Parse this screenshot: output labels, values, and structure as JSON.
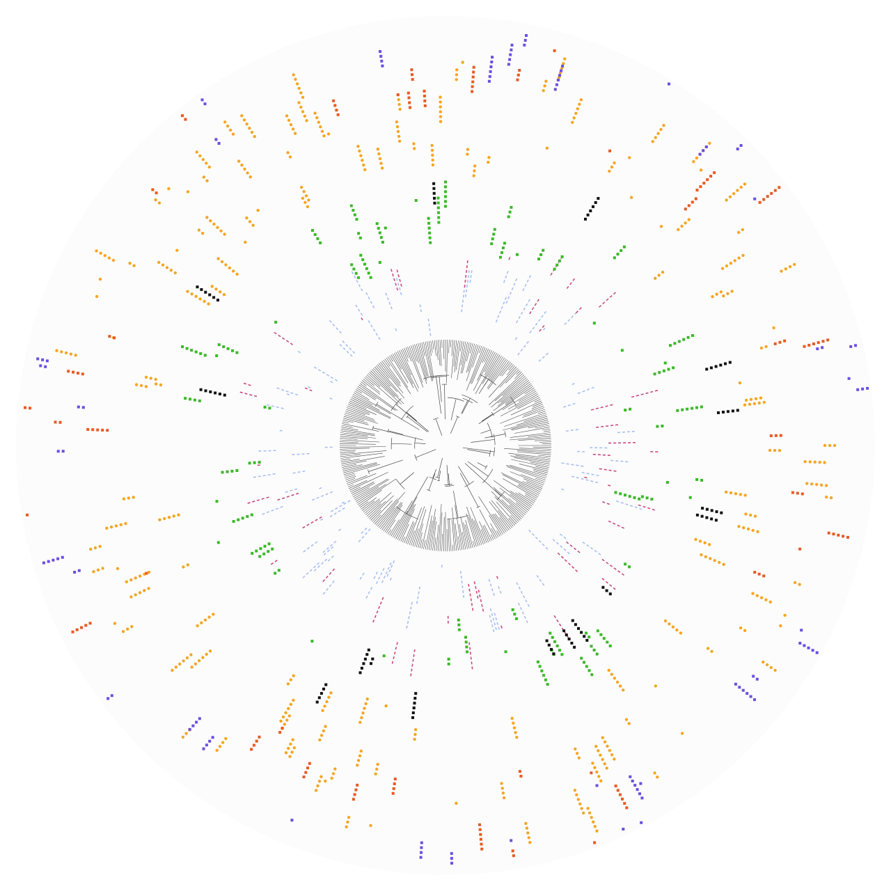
{
  "figure": {
    "kind": "circular phylogenetic tree with concentric presence/absence annotation rings",
    "tree": {
      "layout": "circular",
      "branch_color": "#444444",
      "center_color": "#ffffff"
    },
    "background_disc_color": "#fcfcfc",
    "rings": [
      {
        "id": "ring-1",
        "shape": "dash",
        "color": "#a7bff2",
        "density": 0.22
      },
      {
        "id": "ring-2",
        "shape": "dash",
        "color": "#c94a7f",
        "density": 0.1
      },
      {
        "id": "ring-3",
        "shape": "square",
        "color": "#3cb82a",
        "density": 0.12
      },
      {
        "id": "ring-4",
        "shape": "square",
        "color": "#111111",
        "density": 0.05
      },
      {
        "id": "ring-5",
        "shape": "circle",
        "color": "#f5a623",
        "density": 0.3
      },
      {
        "id": "ring-6",
        "shape": "square",
        "color": "#e85a24",
        "density": 0.1
      },
      {
        "id": "ring-7",
        "shape": "square",
        "color": "#6b4fe0",
        "density": 0.07
      }
    ]
  }
}
